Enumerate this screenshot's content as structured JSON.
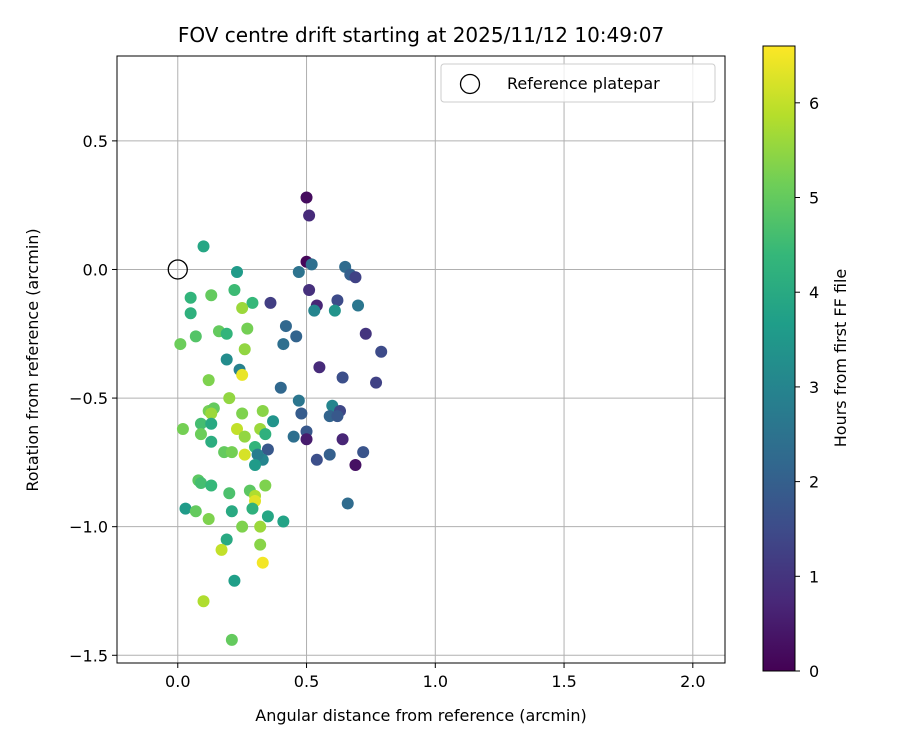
{
  "chart_data": {
    "type": "scatter",
    "title": "FOV centre drift starting at 2025/11/12 10:49:07",
    "xlabel": "Angular distance from reference (arcmin)",
    "ylabel": "Rotation from reference (arcmin)",
    "xlim": [
      -0.236,
      2.125
    ],
    "ylim": [
      -1.53,
      0.83
    ],
    "x_ticks": [
      0.0,
      0.5,
      1.0,
      1.5,
      2.0
    ],
    "x_tick_labels": [
      "0.0",
      "0.5",
      "1.0",
      "1.5",
      "2.0"
    ],
    "y_ticks": [
      0.5,
      0.0,
      -0.5,
      -1.0,
      -1.5
    ],
    "y_tick_labels": [
      "0.5",
      "0.0",
      "−0.5",
      "−1.0",
      "−1.5"
    ],
    "grid": true,
    "legend": {
      "position": "top-right",
      "entries": [
        {
          "label": "Reference platepar",
          "marker": "open-circle"
        }
      ]
    },
    "reference_point": {
      "x": 0.0,
      "y": 0.0
    },
    "colorbar": {
      "label": "Hours from first FF file",
      "colormap": "viridis",
      "vmin": 0,
      "vmax": 6.6,
      "ticks": [
        0,
        1,
        2,
        3,
        4,
        5,
        6
      ],
      "tick_labels": [
        "0",
        "1",
        "2",
        "3",
        "4",
        "5",
        "6"
      ],
      "stops": [
        "#440154",
        "#482878",
        "#3e4a89",
        "#31688e",
        "#26828e",
        "#1f9e89",
        "#35b779",
        "#6ece58",
        "#b5de2b",
        "#fde725"
      ]
    },
    "points": [
      {
        "x": 0.5,
        "y": 0.28,
        "t": 0.2
      },
      {
        "x": 0.51,
        "y": 0.21,
        "t": 0.8
      },
      {
        "x": 0.5,
        "y": 0.03,
        "t": 0.1
      },
      {
        "x": 0.52,
        "y": 0.02,
        "t": 2.4
      },
      {
        "x": 0.47,
        "y": -0.01,
        "t": 2.5
      },
      {
        "x": 0.65,
        "y": 0.01,
        "t": 2.3
      },
      {
        "x": 0.67,
        "y": -0.02,
        "t": 2.0
      },
      {
        "x": 0.69,
        "y": -0.03,
        "t": 1.3
      },
      {
        "x": 0.51,
        "y": -0.08,
        "t": 0.9
      },
      {
        "x": 0.54,
        "y": -0.14,
        "t": 0.7
      },
      {
        "x": 0.62,
        "y": -0.12,
        "t": 1.5
      },
      {
        "x": 0.7,
        "y": -0.14,
        "t": 2.6
      },
      {
        "x": 0.36,
        "y": -0.13,
        "t": 1.2
      },
      {
        "x": 0.53,
        "y": -0.16,
        "t": 3.0
      },
      {
        "x": 0.61,
        "y": -0.16,
        "t": 3.4
      },
      {
        "x": 0.42,
        "y": -0.22,
        "t": 2.2
      },
      {
        "x": 0.73,
        "y": -0.25,
        "t": 1.0
      },
      {
        "x": 0.79,
        "y": -0.32,
        "t": 1.5
      },
      {
        "x": 0.41,
        "y": -0.29,
        "t": 2.4
      },
      {
        "x": 0.46,
        "y": -0.26,
        "t": 2.1
      },
      {
        "x": 0.55,
        "y": -0.38,
        "t": 0.8
      },
      {
        "x": 0.64,
        "y": -0.42,
        "t": 1.6
      },
      {
        "x": 0.77,
        "y": -0.44,
        "t": 1.3
      },
      {
        "x": 0.4,
        "y": -0.46,
        "t": 2.2
      },
      {
        "x": 0.47,
        "y": -0.51,
        "t": 2.6
      },
      {
        "x": 0.48,
        "y": -0.56,
        "t": 1.9
      },
      {
        "x": 0.6,
        "y": -0.53,
        "t": 3.0
      },
      {
        "x": 0.59,
        "y": -0.57,
        "t": 2.1
      },
      {
        "x": 0.63,
        "y": -0.55,
        "t": 1.4
      },
      {
        "x": 0.62,
        "y": -0.57,
        "t": 1.8
      },
      {
        "x": 0.5,
        "y": -0.63,
        "t": 1.8
      },
      {
        "x": 0.5,
        "y": -0.66,
        "t": 0.5
      },
      {
        "x": 0.45,
        "y": -0.65,
        "t": 2.4
      },
      {
        "x": 0.64,
        "y": -0.66,
        "t": 0.7
      },
      {
        "x": 0.72,
        "y": -0.71,
        "t": 1.7
      },
      {
        "x": 0.59,
        "y": -0.72,
        "t": 2.0
      },
      {
        "x": 0.54,
        "y": -0.74,
        "t": 1.6
      },
      {
        "x": 0.69,
        "y": -0.76,
        "t": 0.3
      },
      {
        "x": 0.66,
        "y": -0.91,
        "t": 2.3
      },
      {
        "x": 0.1,
        "y": 0.09,
        "t": 3.9
      },
      {
        "x": 0.23,
        "y": -0.01,
        "t": 3.6
      },
      {
        "x": 0.05,
        "y": -0.11,
        "t": 4.3
      },
      {
        "x": 0.13,
        "y": -0.1,
        "t": 5.0
      },
      {
        "x": 0.22,
        "y": -0.08,
        "t": 4.5
      },
      {
        "x": 0.29,
        "y": -0.13,
        "t": 4.4
      },
      {
        "x": 0.05,
        "y": -0.17,
        "t": 4.2
      },
      {
        "x": 0.25,
        "y": -0.15,
        "t": 5.6
      },
      {
        "x": 0.16,
        "y": -0.24,
        "t": 5.0
      },
      {
        "x": 0.19,
        "y": -0.25,
        "t": 4.3
      },
      {
        "x": 0.27,
        "y": -0.23,
        "t": 5.2
      },
      {
        "x": 0.07,
        "y": -0.26,
        "t": 4.8
      },
      {
        "x": 0.01,
        "y": -0.29,
        "t": 5.1
      },
      {
        "x": 0.26,
        "y": -0.31,
        "t": 5.5
      },
      {
        "x": 0.19,
        "y": -0.35,
        "t": 3.2
      },
      {
        "x": 0.24,
        "y": -0.39,
        "t": 2.9
      },
      {
        "x": 0.25,
        "y": -0.41,
        "t": 6.4
      },
      {
        "x": 0.12,
        "y": -0.43,
        "t": 5.3
      },
      {
        "x": 0.37,
        "y": -0.59,
        "t": 3.4
      },
      {
        "x": 0.2,
        "y": -0.5,
        "t": 5.5
      },
      {
        "x": 0.12,
        "y": -0.55,
        "t": 5.2
      },
      {
        "x": 0.14,
        "y": -0.54,
        "t": 5.0
      },
      {
        "x": 0.13,
        "y": -0.56,
        "t": 5.6
      },
      {
        "x": 0.25,
        "y": -0.56,
        "t": 5.3
      },
      {
        "x": 0.33,
        "y": -0.55,
        "t": 5.4
      },
      {
        "x": 0.09,
        "y": -0.6,
        "t": 4.6
      },
      {
        "x": 0.13,
        "y": -0.6,
        "t": 4.0
      },
      {
        "x": 0.23,
        "y": -0.62,
        "t": 6.0
      },
      {
        "x": 0.32,
        "y": -0.62,
        "t": 5.6
      },
      {
        "x": 0.02,
        "y": -0.62,
        "t": 5.2
      },
      {
        "x": 0.09,
        "y": -0.64,
        "t": 5.1
      },
      {
        "x": 0.13,
        "y": -0.67,
        "t": 4.1
      },
      {
        "x": 0.26,
        "y": -0.65,
        "t": 5.5
      },
      {
        "x": 0.34,
        "y": -0.64,
        "t": 4.2
      },
      {
        "x": 0.35,
        "y": -0.7,
        "t": 1.8
      },
      {
        "x": 0.3,
        "y": -0.69,
        "t": 4.3
      },
      {
        "x": 0.18,
        "y": -0.71,
        "t": 5.0
      },
      {
        "x": 0.21,
        "y": -0.71,
        "t": 5.2
      },
      {
        "x": 0.26,
        "y": -0.72,
        "t": 6.2
      },
      {
        "x": 0.33,
        "y": -0.74,
        "t": 3.0
      },
      {
        "x": 0.31,
        "y": -0.72,
        "t": 2.8
      },
      {
        "x": 0.3,
        "y": -0.76,
        "t": 3.6
      },
      {
        "x": 0.08,
        "y": -0.82,
        "t": 4.9
      },
      {
        "x": 0.09,
        "y": -0.83,
        "t": 4.6
      },
      {
        "x": 0.13,
        "y": -0.84,
        "t": 4.4
      },
      {
        "x": 0.2,
        "y": -0.87,
        "t": 4.7
      },
      {
        "x": 0.28,
        "y": -0.86,
        "t": 4.9
      },
      {
        "x": 0.34,
        "y": -0.84,
        "t": 5.3
      },
      {
        "x": 0.3,
        "y": -0.88,
        "t": 5.8
      },
      {
        "x": 0.3,
        "y": -0.9,
        "t": 6.3
      },
      {
        "x": 0.03,
        "y": -0.93,
        "t": 3.6
      },
      {
        "x": 0.07,
        "y": -0.94,
        "t": 5.0
      },
      {
        "x": 0.21,
        "y": -0.94,
        "t": 4.0
      },
      {
        "x": 0.29,
        "y": -0.93,
        "t": 4.2
      },
      {
        "x": 0.12,
        "y": -0.97,
        "t": 5.3
      },
      {
        "x": 0.35,
        "y": -0.96,
        "t": 3.9
      },
      {
        "x": 0.41,
        "y": -0.98,
        "t": 3.8
      },
      {
        "x": 0.25,
        "y": -1.0,
        "t": 5.3
      },
      {
        "x": 0.32,
        "y": -1.0,
        "t": 5.6
      },
      {
        "x": 0.19,
        "y": -1.05,
        "t": 4.0
      },
      {
        "x": 0.32,
        "y": -1.07,
        "t": 5.4
      },
      {
        "x": 0.17,
        "y": -1.09,
        "t": 6.0
      },
      {
        "x": 0.33,
        "y": -1.14,
        "t": 6.5
      },
      {
        "x": 0.22,
        "y": -1.21,
        "t": 3.7
      },
      {
        "x": 0.1,
        "y": -1.29,
        "t": 5.8
      },
      {
        "x": 0.21,
        "y": -1.44,
        "t": 5.0
      }
    ]
  }
}
